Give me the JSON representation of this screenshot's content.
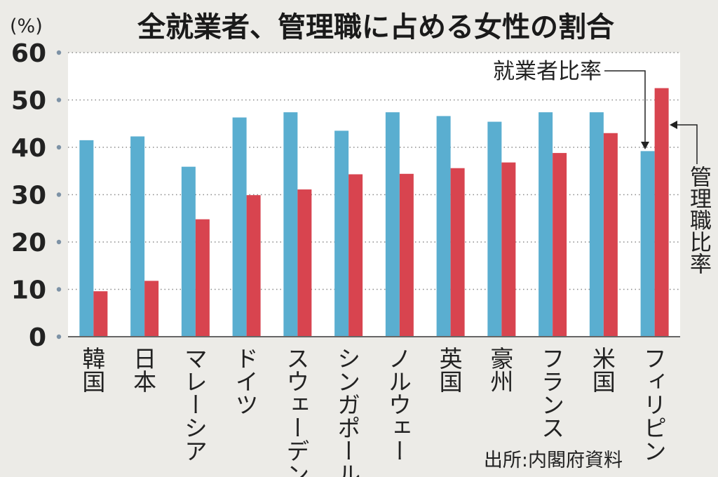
{
  "chart_data": {
    "type": "bar",
    "title": "全就業者、管理職に占める女性の割合",
    "unit": "(%)",
    "categories": [
      "韓国",
      "日本",
      "マレーシア",
      "ドイツ",
      "スウェーデン",
      "シンガポール",
      "ノルウェー",
      "英国",
      "豪州",
      "フランス",
      "米国",
      "フィリピン"
    ],
    "series": [
      {
        "name": "就業者比率",
        "color": "#5aaed0",
        "values": [
          41.5,
          42.3,
          35.9,
          46.3,
          47.4,
          43.5,
          47.4,
          46.6,
          45.4,
          47.4,
          47.4,
          39.2
        ]
      },
      {
        "name": "管理職比率",
        "color": "#d8444f",
        "values": [
          9.6,
          11.8,
          24.8,
          29.9,
          31.1,
          34.3,
          34.4,
          35.6,
          36.8,
          38.8,
          43.0,
          52.5
        ]
      }
    ],
    "ylim": [
      0,
      60
    ],
    "yticks": [
      0,
      10,
      20,
      30,
      40,
      50,
      60
    ],
    "grid": true,
    "source": "出所:内閣府資料"
  }
}
